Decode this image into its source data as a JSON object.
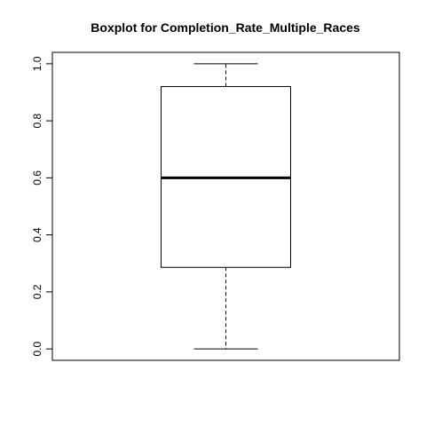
{
  "chart_data": {
    "type": "boxplot",
    "title": "Boxplot for  Completion_Rate_Multiple_Races",
    "xlabel": "",
    "ylabel": "",
    "ylim": [
      -0.04,
      1.04
    ],
    "yticks": [
      0.0,
      0.2,
      0.4,
      0.6,
      0.8,
      1.0
    ],
    "ytick_labels": [
      "0.0",
      "0.2",
      "0.4",
      "0.6",
      "0.8",
      "1.0"
    ],
    "box": {
      "whisker_low": 0.0,
      "q1": 0.286,
      "median": 0.6,
      "q3": 0.92,
      "whisker_high": 1.0
    },
    "grid": false,
    "legend": "none"
  }
}
